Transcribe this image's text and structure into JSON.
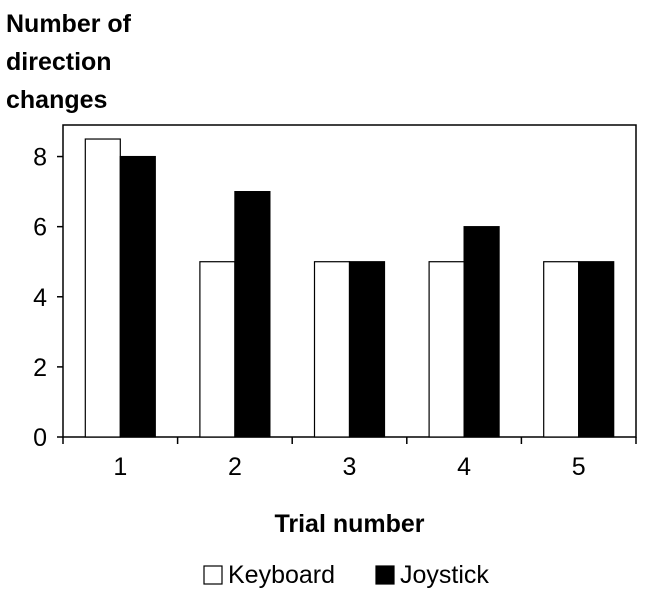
{
  "chart_data": {
    "type": "bar",
    "title": "",
    "ylabel_lines": [
      "Number of",
      "direction",
      "changes"
    ],
    "xlabel": "Trial number",
    "categories": [
      "1",
      "2",
      "3",
      "4",
      "5"
    ],
    "ylim": [
      0,
      8.9
    ],
    "yticks": [
      0,
      2,
      4,
      6,
      8
    ],
    "grid": false,
    "legend_position": "bottom-center",
    "series": [
      {
        "name": "Keyboard",
        "values": [
          8.5,
          5,
          5,
          5,
          5
        ],
        "color": "#ffffff",
        "stroke": "#000000"
      },
      {
        "name": "Joystick",
        "values": [
          8,
          7,
          5,
          6,
          5
        ],
        "color": "#000000",
        "stroke": "#000000"
      }
    ]
  }
}
